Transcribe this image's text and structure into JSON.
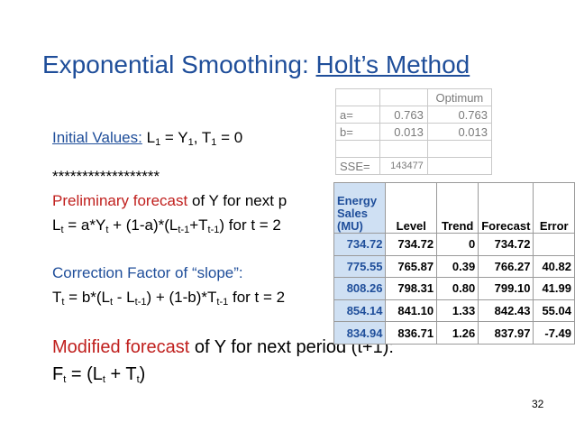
{
  "title": {
    "main": "Exponential Smoothing: ",
    "underlined": "Holt’s Method"
  },
  "initial": {
    "label": "Initial Values:",
    "l": "L",
    "l_sub": "1",
    "eq1": " = Y",
    "y_sub": "1",
    "sep": ", T",
    "t_sub": "1",
    "eq2": " = 0"
  },
  "stars": "******************",
  "prelim": {
    "red": "Preliminary forecast",
    "rest": " of Y for next p",
    "formula": {
      "p1": "L",
      "s1": "t",
      "p2": " = a*Y",
      "s2": "t",
      "p3": " + (1-a)*(L",
      "s3": "t-1",
      "p4": "+T",
      "s4": "t-1",
      "p5": ") for t = 2"
    }
  },
  "correction": {
    "label": "Correction Factor of “slope”:",
    "formula": {
      "p1": "T",
      "s1": "t",
      "p2": " = b*(L",
      "s2": "t",
      "p3": " - L",
      "s3": "t-1",
      "p4": ") + (1-b)*T",
      "s4": "t-1",
      "p5": " for t = 2"
    }
  },
  "modified": {
    "red": "Modified forecast",
    "rest": " of Y for next period (t+1):",
    "formula": {
      "p1": "F",
      "s1": "t",
      "p2": " =  (L",
      "s2": "t",
      "p3": " + T",
      "s3": "t",
      "p4": ")"
    }
  },
  "optimum": {
    "header": "Optimum",
    "rows": [
      {
        "label": "a=",
        "v1": "0.763",
        "v2": "0.763"
      },
      {
        "label": "b=",
        "v1": "0.013",
        "v2": "0.013"
      }
    ],
    "sse_label": "SSE=",
    "sse_value": "143477"
  },
  "sales": {
    "headers": [
      "Energy Sales (MU)",
      "Level",
      "Trend",
      "Forecast",
      "Error"
    ],
    "rows": [
      [
        "734.72",
        "734.72",
        "0",
        "734.72",
        ""
      ],
      [
        "775.55",
        "765.87",
        "0.39",
        "766.27",
        "40.82"
      ],
      [
        "808.26",
        "798.31",
        "0.80",
        "799.10",
        "41.99"
      ],
      [
        "854.14",
        "841.10",
        "1.33",
        "842.43",
        "55.04"
      ],
      [
        "834.94",
        "836.71",
        "1.26",
        "837.97",
        "-7.49"
      ]
    ]
  },
  "page_number": "32"
}
